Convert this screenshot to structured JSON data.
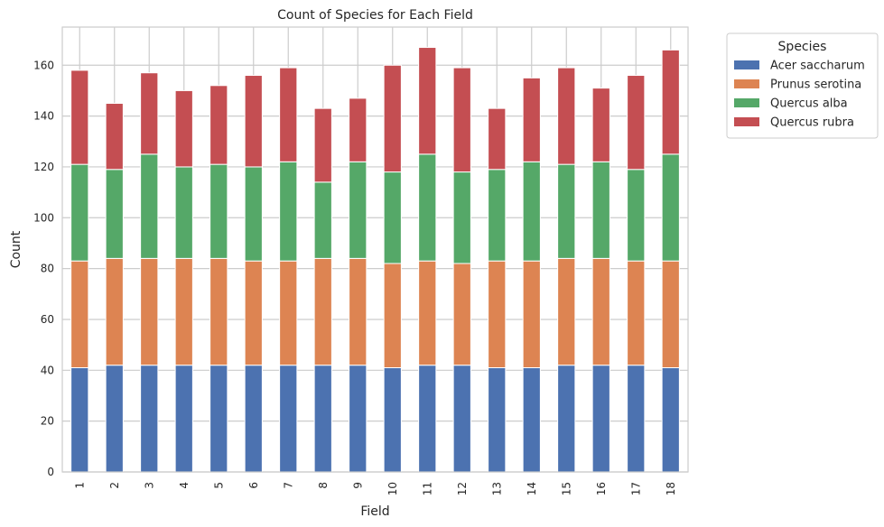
{
  "chart_data": {
    "type": "bar",
    "stacked": true,
    "title": "Count of Species for Each Field",
    "xlabel": "Field",
    "ylabel": "Count",
    "ylim": [
      0,
      175
    ],
    "yticks": [
      0,
      20,
      40,
      60,
      80,
      100,
      120,
      140,
      160
    ],
    "grid": true,
    "legend": {
      "title": "Species",
      "placement": "outside-top-right"
    },
    "categories": [
      "1",
      "2",
      "3",
      "4",
      "5",
      "6",
      "7",
      "8",
      "9",
      "10",
      "11",
      "12",
      "13",
      "14",
      "15",
      "16",
      "17",
      "18"
    ],
    "series": [
      {
        "name": "Acer saccharum",
        "color": "#4c72b0",
        "values": [
          41,
          42,
          42,
          42,
          42,
          42,
          42,
          42,
          42,
          41,
          42,
          42,
          41,
          41,
          42,
          42,
          42,
          41
        ]
      },
      {
        "name": "Prunus serotina",
        "color": "#dd8452",
        "values": [
          42,
          42,
          42,
          42,
          42,
          41,
          41,
          42,
          42,
          41,
          41,
          40,
          42,
          42,
          42,
          42,
          41,
          42
        ]
      },
      {
        "name": "Quercus alba",
        "color": "#55a868",
        "values": [
          38,
          35,
          41,
          36,
          37,
          37,
          39,
          30,
          38,
          36,
          42,
          36,
          36,
          39,
          37,
          38,
          36,
          42
        ]
      },
      {
        "name": "Quercus rubra",
        "color": "#c44e52",
        "values": [
          37,
          26,
          32,
          30,
          31,
          36,
          37,
          29,
          25,
          42,
          42,
          41,
          24,
          33,
          38,
          29,
          37,
          41
        ]
      }
    ]
  }
}
